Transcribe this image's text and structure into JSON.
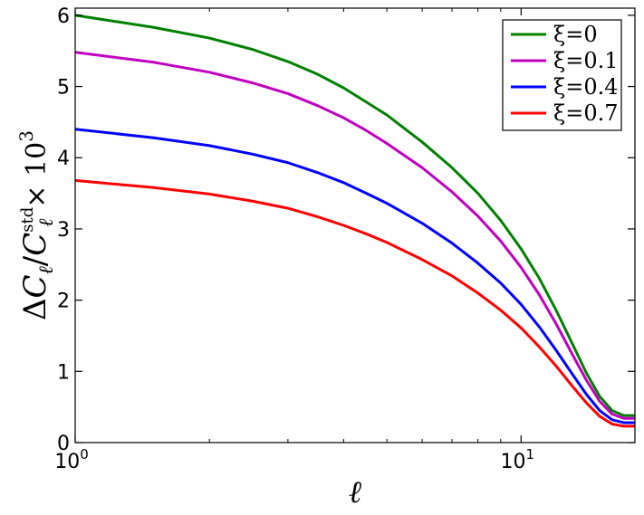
{
  "chart_data": {
    "type": "line",
    "x_scale": "log",
    "xlim": [
      1,
      18
    ],
    "ylim": [
      0,
      6.1
    ],
    "xlabel": "ℓ",
    "ylabel": "ΔC_ℓ / C_ℓ^std × 10^3",
    "ylabel_parts": {
      "main": "ΔC",
      "sub1": "ℓ",
      "slash": "/C",
      "sub2": "ℓ",
      "sup2": "std",
      "times": "× 10",
      "exp": "3"
    },
    "x_ticks": [
      {
        "value": 1,
        "base": "10",
        "exp": "0"
      },
      {
        "value": 10,
        "base": "10",
        "exp": "1"
      }
    ],
    "y_ticks": [
      0,
      1,
      2,
      3,
      4,
      5,
      6
    ],
    "grid": false,
    "legend_position": "top-right",
    "series": [
      {
        "name": "ξ=0",
        "color": "#008000",
        "x": [
          1,
          1.5,
          2,
          2.5,
          3,
          3.5,
          4,
          4.5,
          5,
          6,
          7,
          8,
          9,
          10,
          11,
          12,
          13,
          14,
          15,
          16,
          17,
          18
        ],
        "y": [
          6.0,
          5.83,
          5.68,
          5.52,
          5.35,
          5.17,
          4.98,
          4.78,
          4.6,
          4.22,
          3.86,
          3.5,
          3.12,
          2.72,
          2.3,
          1.85,
          1.4,
          0.98,
          0.65,
          0.45,
          0.38,
          0.38
        ]
      },
      {
        "name": "ξ=0.1",
        "color": "#bf00bf",
        "x": [
          1,
          1.5,
          2,
          2.5,
          3,
          3.5,
          4,
          4.5,
          5,
          6,
          7,
          8,
          9,
          10,
          11,
          12,
          13,
          14,
          15,
          16,
          17,
          18
        ],
        "y": [
          5.48,
          5.34,
          5.2,
          5.05,
          4.9,
          4.73,
          4.56,
          4.38,
          4.2,
          3.86,
          3.52,
          3.18,
          2.83,
          2.46,
          2.07,
          1.66,
          1.25,
          0.88,
          0.58,
          0.4,
          0.34,
          0.34
        ]
      },
      {
        "name": "ξ=0.4",
        "color": "#0000ff",
        "x": [
          1,
          1.5,
          2,
          2.5,
          3,
          3.5,
          4,
          4.5,
          5,
          6,
          7,
          8,
          9,
          10,
          11,
          12,
          13,
          14,
          15,
          16,
          17,
          18
        ],
        "y": [
          4.4,
          4.28,
          4.17,
          4.05,
          3.93,
          3.79,
          3.65,
          3.5,
          3.36,
          3.08,
          2.8,
          2.52,
          2.24,
          1.94,
          1.62,
          1.29,
          0.97,
          0.68,
          0.45,
          0.32,
          0.28,
          0.28
        ]
      },
      {
        "name": "ξ=0.7",
        "color": "#ff0000",
        "x": [
          1,
          1.5,
          2,
          2.5,
          3,
          3.5,
          4,
          4.5,
          5,
          6,
          7,
          8,
          9,
          10,
          11,
          12,
          13,
          14,
          15,
          16,
          17,
          18
        ],
        "y": [
          3.68,
          3.58,
          3.49,
          3.39,
          3.29,
          3.17,
          3.05,
          2.93,
          2.81,
          2.57,
          2.34,
          2.1,
          1.86,
          1.61,
          1.34,
          1.07,
          0.8,
          0.56,
          0.37,
          0.26,
          0.23,
          0.23
        ]
      }
    ]
  }
}
